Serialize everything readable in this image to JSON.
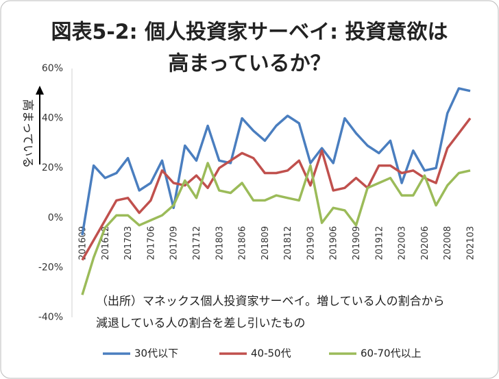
{
  "chart_data": {
    "type": "line",
    "title": "図表5-2: 個人投資家サーベイ: 投資意欲は",
    "subtitle": "高まっているか？",
    "y_label": "高まっている",
    "annotations": [
      "（出所）マネックス個人投資家サーベイ。増している人の割合から",
      "減退している人の割合を差し引いたもの"
    ],
    "categories": [
      "201609",
      null,
      "201612",
      null,
      "201703",
      null,
      "201706",
      null,
      "201709",
      null,
      "201712",
      null,
      "201803",
      null,
      "201806",
      null,
      "201809",
      null,
      "201812",
      null,
      "201903",
      null,
      "201906",
      null,
      "201909",
      null,
      "201912",
      null,
      "202003",
      null,
      "202006",
      null,
      "202008",
      null,
      "202103"
    ],
    "series": [
      {
        "name": "30代以下",
        "color": "#4a7ebf",
        "values": [
          -7,
          21,
          16,
          18,
          24,
          11,
          14,
          23,
          4,
          29,
          23,
          37,
          23,
          22,
          40,
          35,
          31,
          37,
          41,
          38,
          22,
          28,
          22,
          40,
          34,
          29,
          26,
          31,
          14,
          27,
          19,
          20,
          42,
          52,
          51
        ]
      },
      {
        "name": "40-50代",
        "color": "#c0504d",
        "values": [
          -17,
          -9,
          -1,
          7,
          8,
          2,
          7,
          19,
          14,
          13,
          17,
          12,
          20,
          23,
          26,
          24,
          18,
          18,
          19,
          23,
          13,
          27,
          11,
          12,
          16,
          12,
          21,
          21,
          18,
          19,
          16,
          14,
          28,
          34,
          40
        ]
      },
      {
        "name": "60-70代以上",
        "color": "#9bbb59",
        "values": [
          -31,
          -16,
          -4,
          1,
          1,
          -3,
          -1,
          1,
          5,
          15,
          8,
          22,
          11,
          10,
          14,
          7,
          7,
          9,
          8,
          7,
          21,
          -2,
          4,
          3,
          -3,
          12,
          14,
          16,
          9,
          9,
          17,
          5,
          13,
          18,
          19
        ]
      }
    ],
    "ylim": [
      -40,
      60
    ],
    "yticks": [
      {
        "value": -40,
        "label": "-40%"
      },
      {
        "value": -20,
        "label": "-20%"
      },
      {
        "value": 0,
        "label": "0%"
      },
      {
        "value": 20,
        "label": "20%"
      },
      {
        "value": 40,
        "label": "40%"
      },
      {
        "value": 60,
        "label": "60%"
      }
    ],
    "grid": false,
    "legend": "bottom"
  }
}
